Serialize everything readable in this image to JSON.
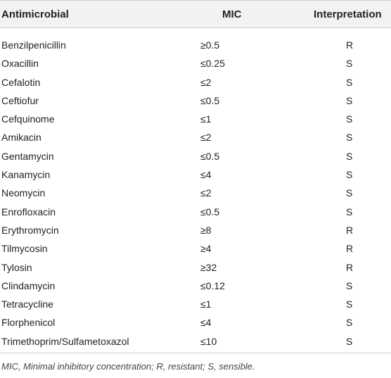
{
  "table": {
    "headers": {
      "antimicrobial": "Antimicrobial",
      "mic": "MIC",
      "interpretation": "Interpretation"
    },
    "rows": [
      {
        "antimicrobial": "Benzilpenicillin",
        "mic": "≥0.5",
        "interpretation": "R"
      },
      {
        "antimicrobial": "Oxacillin",
        "mic": "≤0.25",
        "interpretation": "S"
      },
      {
        "antimicrobial": "Cefalotin",
        "mic": "≤2",
        "interpretation": "S"
      },
      {
        "antimicrobial": "Ceftiofur",
        "mic": "≤0.5",
        "interpretation": "S"
      },
      {
        "antimicrobial": "Cefquinome",
        "mic": "≤1",
        "interpretation": "S"
      },
      {
        "antimicrobial": "Amikacin",
        "mic": "≤2",
        "interpretation": "S"
      },
      {
        "antimicrobial": "Gentamycin",
        "mic": "≤0.5",
        "interpretation": "S"
      },
      {
        "antimicrobial": "Kanamycin",
        "mic": "≤4",
        "interpretation": "S"
      },
      {
        "antimicrobial": "Neomycin",
        "mic": "≤2",
        "interpretation": "S"
      },
      {
        "antimicrobial": "Enrofloxacin",
        "mic": "≤0.5",
        "interpretation": "S"
      },
      {
        "antimicrobial": "Erythromycin",
        "mic": "≥8",
        "interpretation": "R"
      },
      {
        "antimicrobial": "Tilmycosin",
        "mic": "≥4",
        "interpretation": "R"
      },
      {
        "antimicrobial": "Tylosin",
        "mic": "≥32",
        "interpretation": "R"
      },
      {
        "antimicrobial": "Clindamycin",
        "mic": "≤0.12",
        "interpretation": "S"
      },
      {
        "antimicrobial": "Tetracycline",
        "mic": "≤1",
        "interpretation": "S"
      },
      {
        "antimicrobial": "Florphenicol",
        "mic": "≤4",
        "interpretation": "S"
      },
      {
        "antimicrobial": "Trimethoprim/Sulfametoxazol",
        "mic": "≤10",
        "interpretation": "S"
      }
    ],
    "footnote": "MIC, Minimal inhibitory concentration; R, resistant; S, sensible."
  }
}
